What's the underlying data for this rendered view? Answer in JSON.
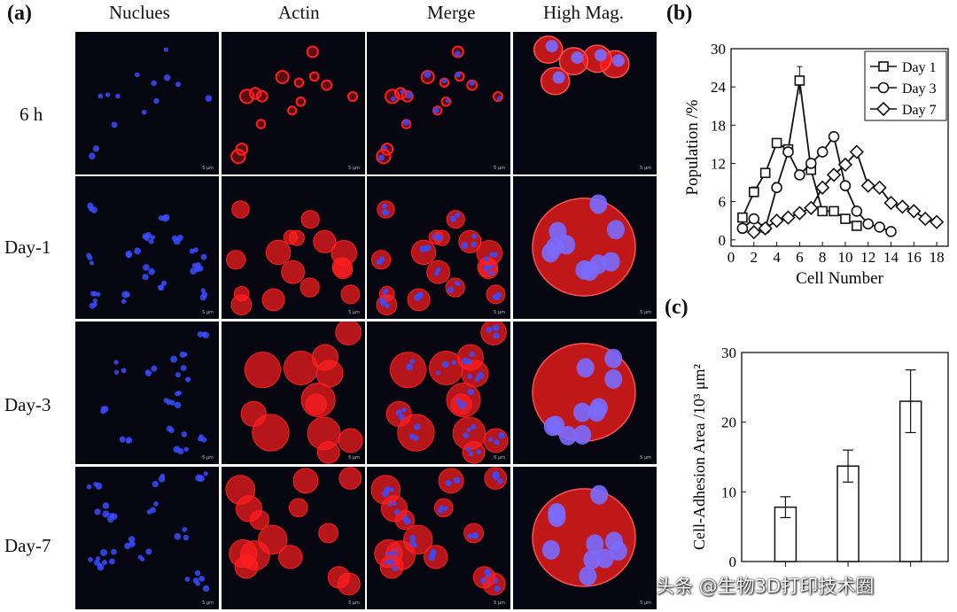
{
  "panel_a": {
    "letter": "(a)",
    "columns": [
      "Nuclues",
      "Actin",
      "Merge",
      "High Mag."
    ],
    "rows": [
      "6 h",
      "Day-1",
      "Day-3",
      "Day-7"
    ],
    "scale_text": "5 μm"
  },
  "panel_b": {
    "letter": "(b)"
  },
  "panel_c": {
    "letter": "(c)"
  },
  "watermark": "头条 @生物3D打印技术圈",
  "colors": {
    "nucleus": "#3a4cff",
    "actin": "#ff1e1e",
    "background": "#05060f"
  },
  "chart_data": [
    {
      "type": "line",
      "panel": "b",
      "xlabel": "Cell Number",
      "ylabel": "Population /%",
      "xlim": [
        0,
        19
      ],
      "ylim": [
        -1,
        30
      ],
      "xticks": [
        0,
        2,
        4,
        6,
        8,
        10,
        12,
        14,
        16,
        18
      ],
      "yticks": [
        0,
        6,
        12,
        18,
        24,
        30
      ],
      "legend_position": "top-right",
      "series": [
        {
          "name": "Day 1",
          "marker": "square",
          "x": [
            1,
            2,
            3,
            4,
            5,
            6,
            7,
            8,
            9,
            10,
            11
          ],
          "y": [
            3.5,
            7.5,
            10.5,
            15.2,
            14.2,
            25,
            11,
            4.5,
            4.5,
            3.3,
            2.2
          ],
          "err": [
            0.4,
            0.8,
            0.5,
            0.5,
            0.5,
            2.2,
            0.6,
            0.4,
            0.4,
            0.5,
            0.3
          ]
        },
        {
          "name": "Day 3",
          "marker": "circle",
          "x": [
            1,
            2,
            3,
            4,
            5,
            6,
            7,
            8,
            9,
            10,
            11,
            12,
            13,
            14
          ],
          "y": [
            1.8,
            3.3,
            1.8,
            8.2,
            13.8,
            10.2,
            12,
            13.8,
            16.2,
            8.5,
            4.5,
            2.5,
            2,
            1.3
          ],
          "err": [
            0.3,
            0.4,
            0.3,
            0.8,
            0.6,
            0.6,
            0.6,
            0.6,
            0.6,
            0.6,
            0.5,
            0.3,
            0.3,
            0.2
          ]
        },
        {
          "name": "Day 7",
          "marker": "diamond",
          "x": [
            2,
            3,
            4,
            5,
            6,
            7,
            8,
            9,
            10,
            11,
            12,
            13,
            14,
            15,
            16,
            17,
            18
          ],
          "y": [
            1.2,
            1.8,
            3,
            3.5,
            4.2,
            5,
            8.2,
            10.2,
            11.8,
            13.8,
            8.5,
            8.2,
            5.8,
            5.2,
            4.5,
            3.3,
            2.8
          ],
          "err": [
            0.3,
            0.3,
            0.4,
            0.4,
            0.4,
            0.4,
            0.6,
            0.6,
            0.6,
            0.6,
            0.6,
            0.6,
            0.4,
            0.4,
            0.4,
            0.3,
            0.3
          ]
        }
      ]
    },
    {
      "type": "bar",
      "panel": "c",
      "ylabel": "Cell-Adhesion Area /10³ μm²",
      "ylim": [
        0,
        30
      ],
      "yticks": [
        0,
        10,
        20,
        30
      ],
      "categories": [
        "",
        "",
        ""
      ],
      "values": [
        7.8,
        13.7,
        23
      ],
      "err": [
        1.5,
        2.3,
        4.5
      ]
    }
  ]
}
